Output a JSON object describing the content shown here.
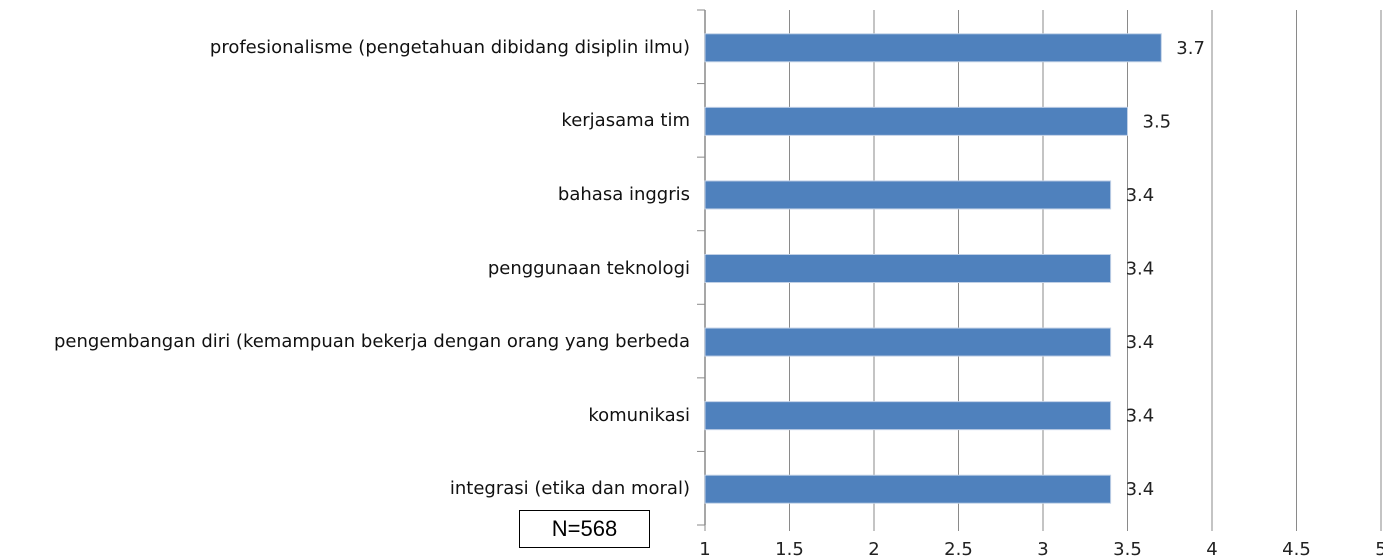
{
  "chart_data": {
    "type": "barh",
    "categories": [
      "profesionalisme (pengetahuan dibidang disiplin ilmu)",
      "kerjasama tim",
      "bahasa inggris",
      "penggunaan teknologi",
      "pengembangan diri (kemampuan bekerja dengan orang yang berbeda",
      "komunikasi",
      "integrasi (etika dan moral)"
    ],
    "values": [
      3.7,
      3.5,
      3.4,
      3.4,
      3.4,
      3.4,
      3.4
    ],
    "color": "#4f81bd",
    "xlim": [
      1,
      5
    ],
    "xticks": [
      1,
      1.5,
      2,
      2.5,
      3,
      3.5,
      4,
      4.5,
      5
    ],
    "grid": true,
    "annotation": "N=568"
  }
}
